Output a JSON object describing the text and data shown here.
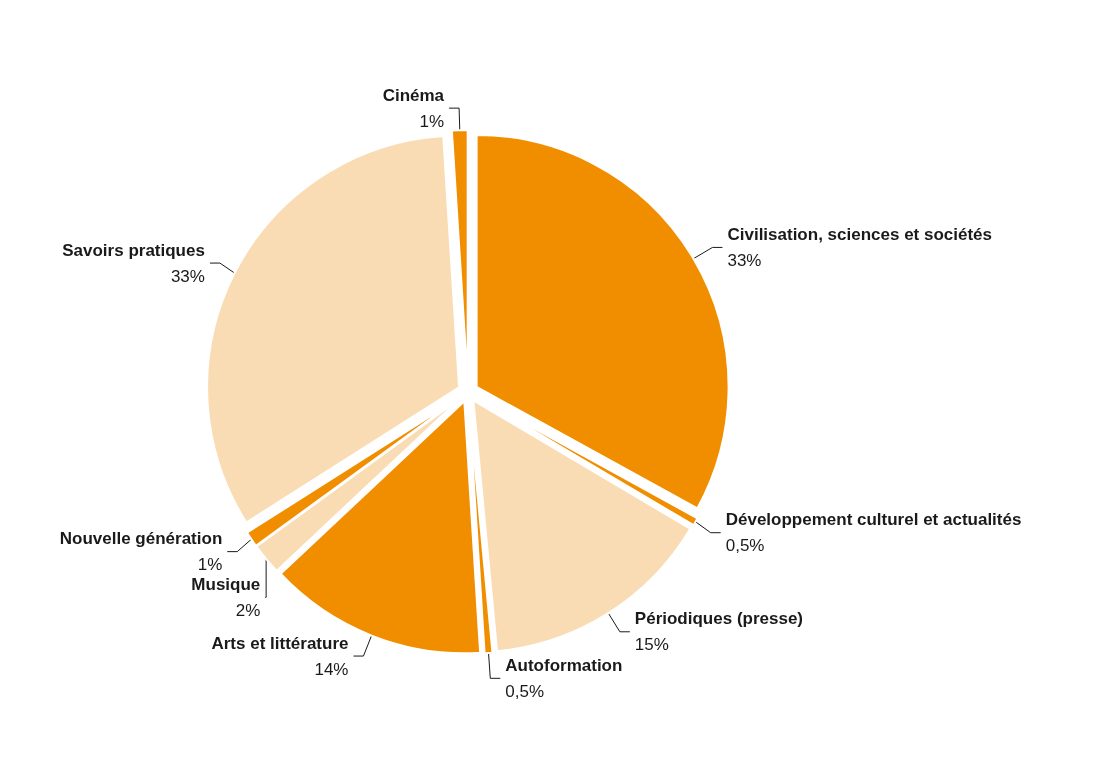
{
  "chart_data": {
    "type": "pie",
    "categories": [
      "Civilisation, sciences et sociétés",
      "Développement culturel et actualités",
      "Périodiques (presse)",
      "Autoformation",
      "Arts et littérature",
      "Musique",
      "Nouvelle génération",
      "Savoirs pratiques",
      "Cinéma"
    ],
    "values": [
      33,
      0.5,
      15,
      0.5,
      14,
      2,
      1,
      33,
      1
    ],
    "value_labels": [
      "33%",
      "0,5%",
      "15%",
      "0,5%",
      "14%",
      "2%",
      "1%",
      "33%",
      "1%"
    ],
    "colors": [
      "#f18e00",
      "#f18e00",
      "#fadcb4",
      "#f18e00",
      "#f18e00",
      "#fadcb4",
      "#f18e00",
      "#fadcb4",
      "#f18e00"
    ]
  }
}
